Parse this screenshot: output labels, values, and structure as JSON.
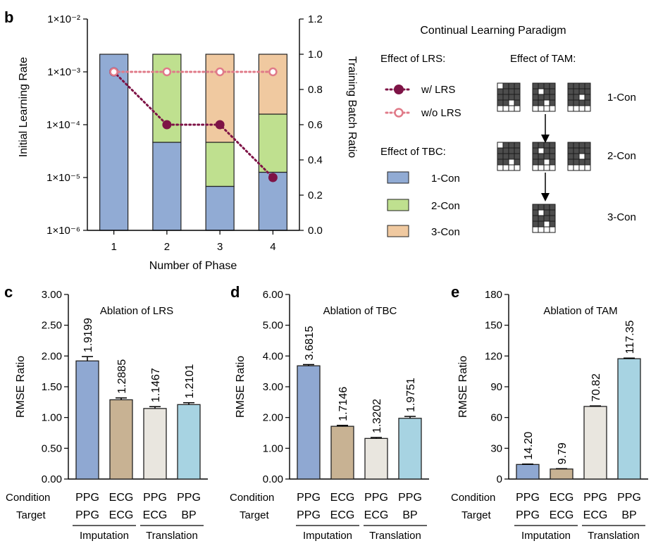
{
  "panel_b": {
    "label": "b",
    "title": "Continual Learning Paradigm",
    "lrs_heading": "Effect of LRS:",
    "tbc_heading": "Effect of TBC:",
    "tam_heading": "Effect of TAM:",
    "lrs_legend": [
      "w/ LRS",
      "w/o LRS"
    ],
    "tbc_legend": [
      "1-Con",
      "2-Con",
      "3-Con"
    ],
    "tam_rows": [
      "1-Con",
      "2-Con",
      "3-Con"
    ],
    "colors": {
      "con1": "#91abd4",
      "con2": "#bfe08f",
      "con3": "#f0c9a0",
      "with_lrs": "#7e1346",
      "without_lrs": "#e07a88"
    }
  },
  "panel_labels": {
    "c": "c",
    "d": "d",
    "e": "e"
  },
  "group_labels": {
    "imputation": "Imputation",
    "translation": "Translation"
  },
  "row_labels": {
    "condition": "Condition",
    "target": "Target"
  },
  "chart_data": [
    {
      "id": "b",
      "type": "bar",
      "stacked": true,
      "xlabel": "Number of Phase",
      "ylabel": "Initial Learning Rate",
      "y2label": "Training Batch Ratio",
      "categories": [
        "1",
        "2",
        "3",
        "4"
      ],
      "y_log_range_exponents": [
        -6,
        -2
      ],
      "y_ticks": [
        "1×10⁻⁶",
        "1×10⁻⁵",
        "1×10⁻⁴",
        "1×10⁻³",
        "1×10⁻²"
      ],
      "y2lim": [
        0,
        1.2
      ],
      "y2_ticks": [
        "0.0",
        "0.2",
        "0.4",
        "0.6",
        "0.8",
        "1.0",
        "1.2"
      ],
      "bar_series": [
        {
          "name": "1-Con",
          "values": [
            1.0,
            0.5,
            0.25,
            0.33
          ]
        },
        {
          "name": "2-Con",
          "values": [
            0,
            0.5,
            0.25,
            0.33
          ]
        },
        {
          "name": "3-Con",
          "values": [
            0,
            0,
            0.5,
            0.34
          ]
        }
      ],
      "line_series": [
        {
          "name": "w/ LRS",
          "values": [
            0.001,
            0.0001,
            0.0001,
            1e-05
          ]
        },
        {
          "name": "w/o LRS",
          "values": [
            0.001,
            0.001,
            0.001,
            0.001
          ]
        }
      ],
      "grid": false
    },
    {
      "id": "c",
      "type": "bar",
      "title": "Ablation of LRS",
      "ylabel": "RMSE Ratio",
      "ylim": [
        0,
        3
      ],
      "y_ticks": [
        "0.00",
        "0.50",
        "1.00",
        "1.50",
        "2.00",
        "2.50",
        "3.00"
      ],
      "conditions": [
        "PPG",
        "ECG",
        "PPG",
        "PPG"
      ],
      "targets": [
        "PPG",
        "ECG",
        "ECG",
        "BP"
      ],
      "values": [
        1.9199,
        1.2885,
        1.1467,
        1.2101
      ],
      "labels": [
        "1.9199",
        "1.2885",
        "1.1467",
        "1.2101"
      ],
      "errors": [
        0.07,
        0.03,
        0.03,
        0.03
      ],
      "colors": [
        "#8fa8d2",
        "#c8b293",
        "#e9e6df",
        "#a7d3e2"
      ]
    },
    {
      "id": "d",
      "type": "bar",
      "title": "Ablation of TBC",
      "ylabel": "RMSE Ratio",
      "ylim": [
        0,
        6
      ],
      "y_ticks": [
        "0.00",
        "1.00",
        "2.00",
        "3.00",
        "4.00",
        "5.00",
        "6.00"
      ],
      "conditions": [
        "PPG",
        "ECG",
        "PPG",
        "PPG"
      ],
      "targets": [
        "PPG",
        "ECG",
        "ECG",
        "BP"
      ],
      "values": [
        3.6815,
        1.7146,
        1.3202,
        1.9751
      ],
      "labels": [
        "3.6815",
        "1.7146",
        "1.3202",
        "1.9751"
      ],
      "errors": [
        0.04,
        0.03,
        0.03,
        0.06
      ],
      "colors": [
        "#8fa8d2",
        "#c8b293",
        "#e9e6df",
        "#a7d3e2"
      ]
    },
    {
      "id": "e",
      "type": "bar",
      "title": "Ablation of TAM",
      "ylabel": "RMSE Ratio",
      "ylim": [
        0,
        180
      ],
      "y_ticks": [
        "0",
        "30",
        "60",
        "90",
        "120",
        "150",
        "180"
      ],
      "conditions": [
        "PPG",
        "ECG",
        "PPG",
        "PPG"
      ],
      "targets": [
        "PPG",
        "ECG",
        "ECG",
        "BP"
      ],
      "values": [
        14.2,
        9.79,
        70.82,
        117.35
      ],
      "labels": [
        "14.20",
        "9.79",
        "70.82",
        "117.35"
      ],
      "errors": [
        0.4,
        0.3,
        0.5,
        0.6
      ],
      "colors": [
        "#8fa8d2",
        "#c8b293",
        "#e9e6df",
        "#a7d3e2"
      ]
    }
  ]
}
